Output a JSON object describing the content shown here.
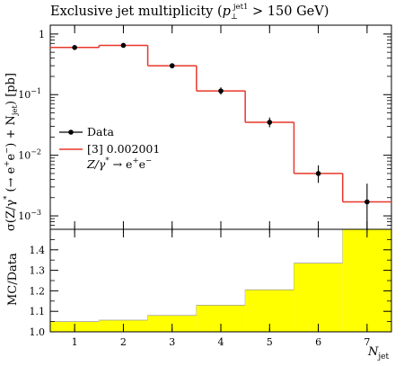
{
  "chart_data": [
    {
      "type": "histogram",
      "title": "Exclusive jet multiplicity (p⊥jet1 > 150 GeV)",
      "title_parts": {
        "prefix": "Exclusive jet multiplicity (",
        "p": "p",
        "sub": "⊥",
        "sup": "jet1",
        "suffix": " > 150 GeV)"
      },
      "ylabel": "σ(Z/γ* (→ e⁺e⁻) + N_jet) [pb]",
      "ylabel_parts": {
        "pre": "σ(Z/γ",
        "star": "*",
        "arrow": " (→ e",
        "ep": "+",
        "e": "e",
        "em": "−",
        "plus": ") + N",
        "jet": "jet",
        "post": ") [pb]"
      },
      "yscale": "log",
      "ylim": [
        0.0006,
        1.4
      ],
      "xlim": [
        0.5,
        7.5
      ],
      "y_ticks": [
        {
          "v": 1,
          "label": "1",
          "exp": ""
        },
        {
          "v": 0.1,
          "label": "10",
          "exp": "−1"
        },
        {
          "v": 0.01,
          "label": "10",
          "exp": "−2"
        },
        {
          "v": 0.001,
          "label": "10",
          "exp": "−3"
        }
      ],
      "series": [
        {
          "name": "Data",
          "kind": "points",
          "color": "#000000",
          "x": [
            1,
            2,
            3,
            4,
            5,
            6,
            7
          ],
          "y": [
            0.6,
            0.65,
            0.3,
            0.115,
            0.035,
            0.005,
            0.0017
          ],
          "err_lo": [
            0.58,
            0.63,
            0.29,
            0.1,
            0.029,
            0.0035,
            0.0006
          ],
          "err_hi": [
            0.62,
            0.67,
            0.31,
            0.132,
            0.042,
            0.0068,
            0.0034
          ]
        },
        {
          "name": "[3] 0.002001",
          "kind": "step",
          "color": "#e8372a",
          "bin_edges": [
            0.5,
            1.5,
            2.5,
            3.5,
            4.5,
            5.5,
            6.5,
            7.5
          ],
          "values": [
            0.6,
            0.65,
            0.3,
            0.115,
            0.035,
            0.005,
            0.0017
          ]
        }
      ],
      "legend": {
        "position": "middle-left",
        "entries": [
          "Data",
          "[3] 0.002001"
        ],
        "extra": "Z/γ* → e⁺e⁻",
        "extra_parts": {
          "pre": "Z/γ",
          "star": "*",
          "arrow": " → e",
          "ep": "+",
          "e": "e",
          "em": "−"
        }
      }
    },
    {
      "type": "ratio-band",
      "ylabel": "MC/Data",
      "xlabel": "N_jet",
      "xlabel_parts": {
        "n": "N",
        "sub": "jet"
      },
      "xlim": [
        0.5,
        7.5
      ],
      "ylim": [
        1.0,
        1.5
      ],
      "x_ticks": [
        1,
        2,
        3,
        4,
        5,
        6,
        7
      ],
      "y_ticks": [
        "1.0",
        "1.1",
        "1.2",
        "1.3",
        "1.4"
      ],
      "y_tick_values": [
        1.0,
        1.1,
        1.2,
        1.3,
        1.4
      ],
      "band_color": "#ffff00",
      "bin_edges": [
        0.5,
        1.5,
        2.5,
        3.5,
        4.5,
        5.5,
        6.5,
        7.5
      ],
      "band_upper": [
        1.05,
        1.057,
        1.08,
        1.13,
        1.205,
        1.335,
        1.5
      ]
    }
  ]
}
